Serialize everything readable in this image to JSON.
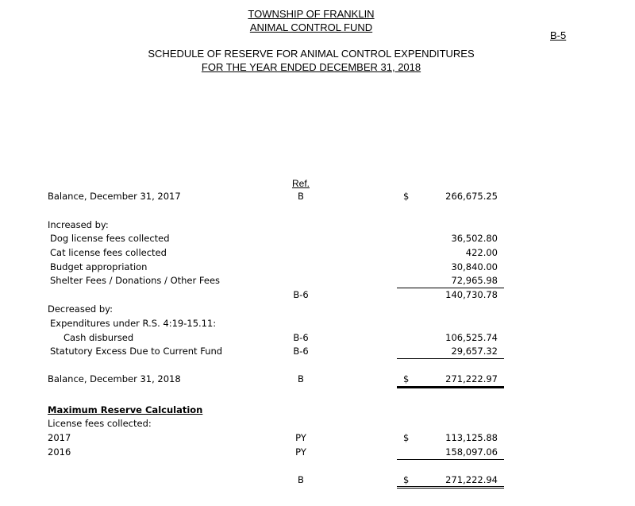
{
  "header": {
    "entity": "TOWNSHIP OF FRANKLIN",
    "fund": "ANIMAL CONTROL FUND",
    "page_ref": "B-5",
    "title": "SCHEDULE OF  RESERVE FOR ANIMAL CONTROL EXPENDITURES",
    "period": "FOR THE YEAR ENDED DECEMBER 31, 2018"
  },
  "ref_header": "Ref.",
  "rows": {
    "bal2017": {
      "label": "Balance, December 31, 2017",
      "ref": "B",
      "currency": "$",
      "amount": "266,675.25"
    },
    "increased": {
      "label": "Increased by:"
    },
    "dog": {
      "label": "Dog license fees collected",
      "amount": "36,502.80"
    },
    "cat": {
      "label": "Cat license fees collected",
      "amount": "422.00"
    },
    "budget": {
      "label": "Budget appropriation",
      "amount": "30,840.00"
    },
    "shelter": {
      "label": "Shelter Fees / Donations / Other Fees",
      "amount": "72,965.98"
    },
    "inc_total": {
      "ref": "B-6",
      "amount": "140,730.78"
    },
    "decreased": {
      "label": "Decreased by:"
    },
    "expend": {
      "label": "Expenditures under R.S. 4:19-15.11:"
    },
    "cash": {
      "label": "Cash disbursed",
      "ref": "B-6",
      "amount": "106,525.74"
    },
    "excess": {
      "label": "Statutory Excess Due to Current Fund",
      "ref": "B-6",
      "amount": "29,657.32"
    },
    "bal2018": {
      "label": "Balance, December 31, 2018",
      "ref": "B",
      "currency": "$",
      "amount": "271,222.97"
    },
    "max_title": {
      "label": "Maximum Reserve Calculation"
    },
    "lic": {
      "label": "License fees collected:"
    },
    "y2017": {
      "label": "2017",
      "ref": "PY",
      "currency": "$",
      "amount": "113,125.88"
    },
    "y2016": {
      "label": "2016",
      "ref": "PY",
      "amount": "158,097.06"
    },
    "max_total": {
      "ref": "B",
      "currency": "$",
      "amount": "271,222.94"
    }
  }
}
